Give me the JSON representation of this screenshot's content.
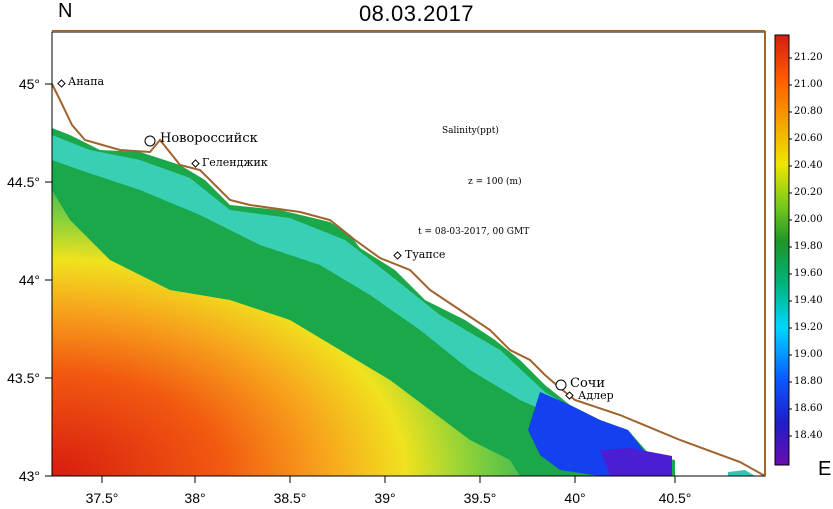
{
  "title": "08.03.2017",
  "axis_letters": {
    "north": "N",
    "east": "E"
  },
  "info": {
    "param": "Salinity(ppt)",
    "depth": "z = 100 (m)",
    "time": "t = 08-03-2017, 00 GMT"
  },
  "cities": [
    {
      "name": "Анапа"
    },
    {
      "name": "Новороссийск"
    },
    {
      "name": "Геленджик"
    },
    {
      "name": "Туапсе"
    },
    {
      "name": "Сочи"
    },
    {
      "name": "Адлер"
    }
  ],
  "y_ticks": [
    "45°",
    "44.5°",
    "44°",
    "43.5°",
    "43°"
  ],
  "x_ticks": [
    "37.5°",
    "38°",
    "38.5°",
    "39°",
    "39.5°",
    "40°",
    "40.5°"
  ],
  "colorbar": {
    "labels": [
      "21.20",
      "21.00",
      "20.80",
      "20.60",
      "20.40",
      "20.20",
      "20.00",
      "19.80",
      "19.60",
      "19.40",
      "19.20",
      "19.00",
      "18.80",
      "18.60",
      "18.40"
    ],
    "colors": [
      "#6a0dad",
      "#1e1ec8",
      "#0a5aff",
      "#00d7ff",
      "#00b47d",
      "#1e9628",
      "#73c81e",
      "#f0e600",
      "#f5a000",
      "#ff5a00",
      "#d21e14"
    ]
  },
  "colors": {
    "coast": "#a0632d"
  }
}
